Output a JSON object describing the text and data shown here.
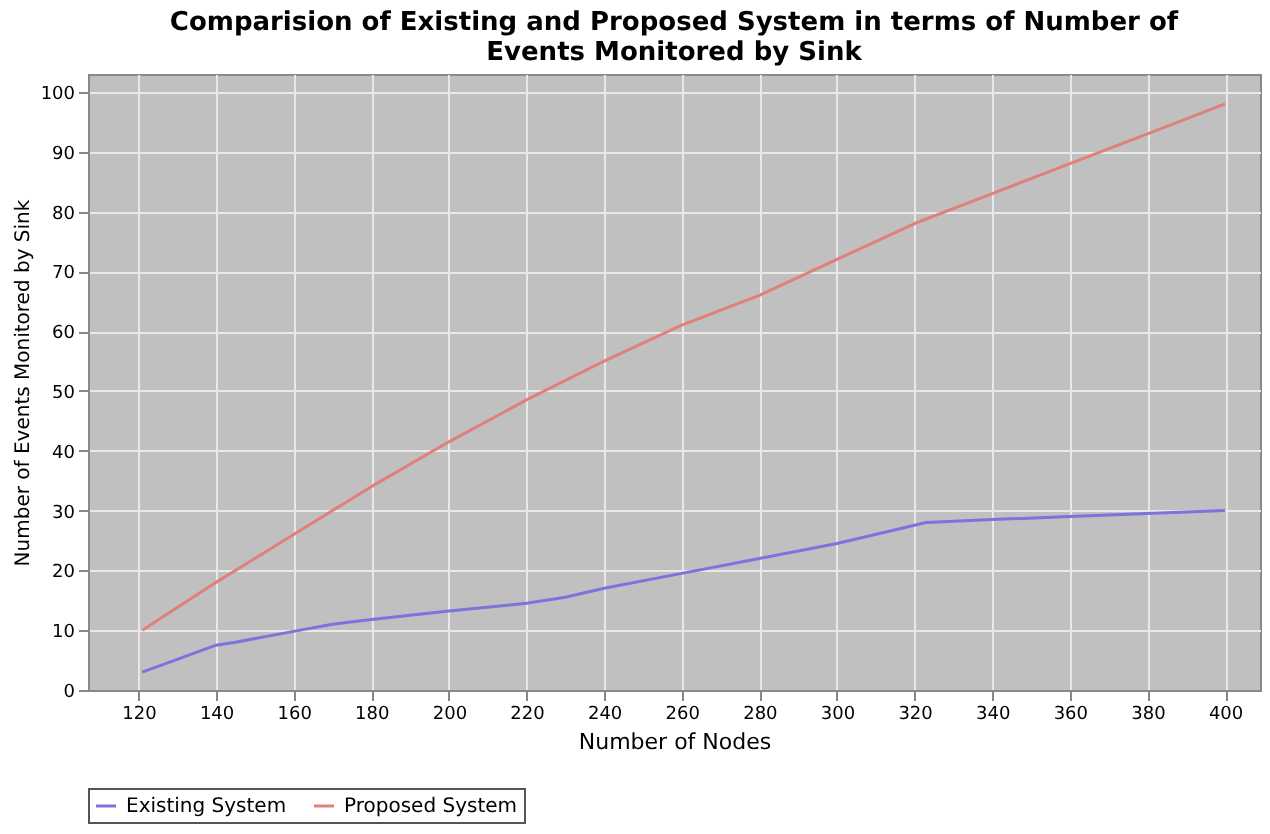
{
  "chart_data": {
    "type": "line",
    "title": "Comparision of Existing and Proposed System in terms of Number of Events Monitored by Sink",
    "xlabel": "Number of Nodes",
    "ylabel": "Number of Events Monitored by Sink",
    "xlim": [
      107,
      409
    ],
    "xticks": [
      120,
      140,
      160,
      180,
      200,
      220,
      240,
      260,
      280,
      300,
      320,
      340,
      360,
      380,
      400
    ],
    "ylim": [
      0,
      103
    ],
    "yticks": [
      0,
      10,
      20,
      30,
      40,
      50,
      60,
      70,
      80,
      90,
      100
    ],
    "grid": true,
    "legend": "bottom",
    "marker": "none",
    "line_style": "solid",
    "series": [
      {
        "name": "Existing System",
        "color": "#7b74dc",
        "x": [
          121,
          140,
          145,
          160,
          170,
          180,
          200,
          220,
          230,
          240,
          260,
          280,
          300,
          323,
          340,
          360,
          380,
          400
        ],
        "values": [
          3,
          7.5,
          8,
          9.8,
          11,
          11.8,
          13.2,
          14.5,
          15.5,
          17,
          19.5,
          22,
          24.5,
          28,
          28.5,
          29,
          29.5,
          30
        ]
      },
      {
        "name": "Proposed System",
        "color": "#e0807c",
        "x": [
          121,
          140,
          160,
          180,
          200,
          220,
          240,
          260,
          280,
          300,
          320,
          340,
          360,
          380,
          400
        ],
        "values": [
          10,
          18,
          26,
          34,
          41.5,
          48.5,
          55,
          61,
          66,
          72,
          78,
          83,
          88,
          93,
          98
        ]
      }
    ]
  }
}
